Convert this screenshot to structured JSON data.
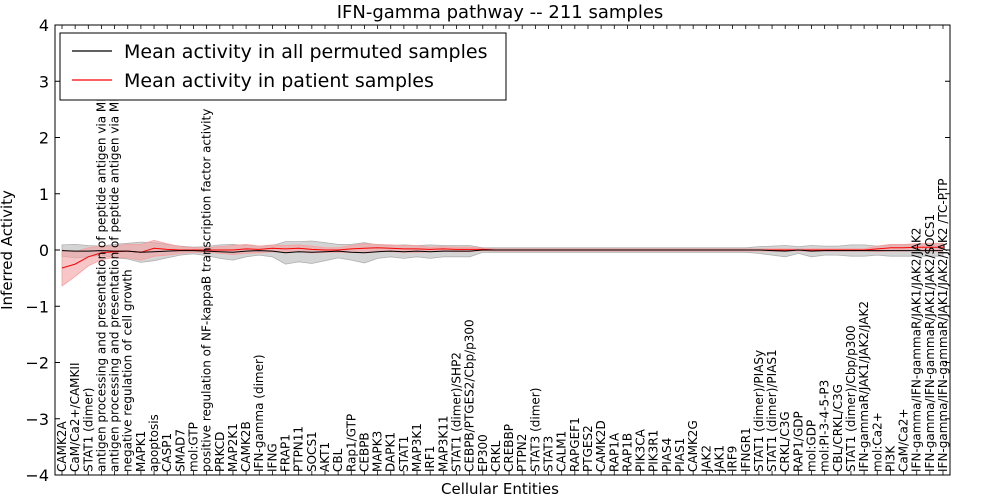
{
  "chart_data": {
    "type": "line",
    "title": "IFN-gamma pathway -- 211 samples",
    "xlabel": "Cellular Entities",
    "ylabel": "Inferred Activity",
    "ylim": [
      -4,
      4
    ],
    "yticks": [
      -4,
      -3,
      -2,
      -1,
      0,
      1,
      2,
      3,
      4
    ],
    "legend": {
      "position": "top-left",
      "entries": [
        {
          "name": "Mean activity in all permuted samples",
          "color": "#000000"
        },
        {
          "name": "Mean activity in patient samples",
          "color": "#ff0000"
        }
      ]
    },
    "categories": [
      "CAMK2A",
      "CaM/Ca2+/CAMKII",
      "STAT1 (dimer)",
      "antigen processing and presentation of peptide antigen via MHC class I",
      "antigen processing and presentation of peptide antigen via MHC class II",
      "negative regulation of cell growth",
      "MAPK1",
      "apoptosis",
      "CASP1",
      "SMAD7",
      "mol:GTP",
      "positive regulation of NF-kappaB transcription factor activity",
      "PRKCD",
      "MAP2K1",
      "CAMK2B",
      "IFN-gamma (dimer)",
      "IFNG",
      "FRAP1",
      "PTPN11",
      "SOCS1",
      "AKT1",
      "CBL",
      "Rap1/GTP",
      "CEBPB",
      "MAPK3",
      "DAPK1",
      "STAT1",
      "MAP3K1",
      "IRF1",
      "MAP3K11",
      "STAT1 (dimer)/SHP2",
      "CEBPB/PTGES2/Cbp/p300",
      "EP300",
      "CRKL",
      "CREBBP",
      "PTPN2",
      "STAT3 (dimer)",
      "STAT3",
      "CALM1",
      "RAPGEF1",
      "PTGES2",
      "CAMK2D",
      "RAP1A",
      "RAP1B",
      "PIK3CA",
      "PIK3R1",
      "PIAS4",
      "PIAS1",
      "CAMK2G",
      "JAK2",
      "JAK1",
      "IRF9",
      "IFNGR1",
      "STAT1 (dimer)/PIASy",
      "STAT1 (dimer)/PIAS1",
      "CRKL/C3G",
      "RAP1/GDP",
      "mol:GDP",
      "mol:PI-3-4-5-P3",
      "CBL/CRKL/C3G",
      "STAT1 (dimer)/Cbp/p300",
      "IFN-gammaR/JAK1/JAK2/JAK2",
      "mol:Ca2+",
      "PI3K",
      "CaM/Ca2+",
      "IFN-gamma/IFN-gammaR/JAK1/JAK2/JAK2",
      "IFN-gamma/IFN-gammaR/JAK1/JAK2/SOCS1",
      "IFN-gamma/IFN-gammaR/JAK1/JAK2/JAK2 /TC-PTP"
    ],
    "series": [
      {
        "name": "Mean activity in all permuted samples",
        "color": "#000000",
        "band_color": "#b0b0b0",
        "values": [
          -0.01,
          -0.02,
          -0.02,
          -0.01,
          -0.02,
          -0.02,
          -0.04,
          -0.03,
          -0.02,
          -0.01,
          -0.01,
          -0.02,
          -0.03,
          -0.04,
          -0.02,
          -0.01,
          -0.02,
          -0.05,
          -0.03,
          -0.04,
          -0.03,
          -0.02,
          -0.04,
          -0.05,
          -0.03,
          -0.02,
          -0.03,
          -0.02,
          -0.03,
          -0.02,
          -0.02,
          -0.02,
          0.0,
          0.0,
          0.0,
          0.0,
          0.0,
          0.0,
          0.0,
          0.0,
          0.0,
          0.0,
          0.0,
          0.0,
          0.0,
          0.0,
          0.0,
          0.0,
          0.0,
          0.0,
          0.0,
          0.0,
          0.0,
          0.0,
          -0.01,
          -0.02,
          0.0,
          -0.02,
          -0.01,
          -0.01,
          -0.01,
          -0.01,
          -0.01,
          -0.01,
          -0.01,
          -0.01,
          -0.01,
          -0.01
        ],
        "band": [
          0.1,
          0.12,
          0.1,
          0.08,
          0.12,
          0.14,
          0.18,
          0.16,
          0.12,
          0.08,
          0.06,
          0.08,
          0.12,
          0.14,
          0.1,
          0.08,
          0.1,
          0.2,
          0.18,
          0.2,
          0.16,
          0.12,
          0.14,
          0.18,
          0.12,
          0.1,
          0.12,
          0.1,
          0.12,
          0.1,
          0.1,
          0.1,
          0.04,
          0.04,
          0.04,
          0.04,
          0.04,
          0.04,
          0.04,
          0.04,
          0.04,
          0.04,
          0.04,
          0.04,
          0.04,
          0.04,
          0.04,
          0.04,
          0.04,
          0.04,
          0.04,
          0.04,
          0.04,
          0.06,
          0.08,
          0.1,
          0.06,
          0.1,
          0.08,
          0.08,
          0.1,
          0.1,
          0.08,
          0.1,
          0.1,
          0.1,
          0.1,
          0.1
        ]
      },
      {
        "name": "Mean activity in patient samples",
        "color": "#ff0000",
        "band_color": "#f4a0a0",
        "values": [
          -0.32,
          -0.25,
          -0.12,
          -0.05,
          -0.03,
          -0.02,
          -0.04,
          0.03,
          0.01,
          0.0,
          0.0,
          0.0,
          0.0,
          0.0,
          0.02,
          0.01,
          0.03,
          0.02,
          0.03,
          0.01,
          0.0,
          0.0,
          0.02,
          0.03,
          0.04,
          0.03,
          0.02,
          0.02,
          0.01,
          0.02,
          0.01,
          0.01,
          0.01,
          0.0,
          0.0,
          0.0,
          0.0,
          0.0,
          0.0,
          0.0,
          0.0,
          0.0,
          0.0,
          0.0,
          0.0,
          0.0,
          0.0,
          0.0,
          0.0,
          0.0,
          0.0,
          0.0,
          0.0,
          0.0,
          0.0,
          0.0,
          0.0,
          0.0,
          0.0,
          0.0,
          0.0,
          0.0,
          0.02,
          0.04,
          0.04,
          0.05,
          0.05,
          0.05
        ],
        "band": [
          0.32,
          0.22,
          0.16,
          0.12,
          0.1,
          0.12,
          0.14,
          0.14,
          0.1,
          0.06,
          0.04,
          0.04,
          0.06,
          0.08,
          0.08,
          0.06,
          0.06,
          0.06,
          0.06,
          0.06,
          0.04,
          0.04,
          0.06,
          0.08,
          0.06,
          0.06,
          0.06,
          0.06,
          0.04,
          0.04,
          0.04,
          0.04,
          0.02,
          0.02,
          0.02,
          0.02,
          0.02,
          0.02,
          0.02,
          0.02,
          0.02,
          0.02,
          0.02,
          0.02,
          0.02,
          0.02,
          0.02,
          0.02,
          0.02,
          0.02,
          0.02,
          0.02,
          0.02,
          0.02,
          0.02,
          0.02,
          0.02,
          0.02,
          0.02,
          0.02,
          0.02,
          0.02,
          0.05,
          0.06,
          0.06,
          0.06,
          0.07,
          0.07
        ]
      }
    ]
  }
}
